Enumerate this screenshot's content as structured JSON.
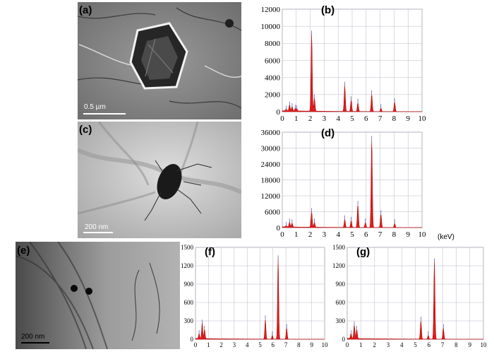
{
  "figure": {
    "panels": [
      {
        "id": "a",
        "label": "(a)",
        "scale": "0.5 µm"
      },
      {
        "id": "b",
        "label": "(b)"
      },
      {
        "id": "c",
        "label": "(c)",
        "scale": "200 nm"
      },
      {
        "id": "d",
        "label": "(d)"
      },
      {
        "id": "e",
        "label": "(e)",
        "scale": "200  nm"
      },
      {
        "id": "f",
        "label": "(f)"
      },
      {
        "id": "g",
        "label": "(g)"
      }
    ],
    "x_unit_label": "(keV)"
  },
  "chart_data": [
    {
      "panel": "b",
      "type": "area",
      "xlim": [
        0,
        10
      ],
      "ylim": [
        0,
        12000
      ],
      "xticks": [
        "0",
        "1",
        "2",
        "3",
        "4",
        "5",
        "6",
        "7",
        "8",
        "9",
        "10"
      ],
      "yticks": [
        "0",
        "2000",
        "4000",
        "6000",
        "8000",
        "10000",
        "12000"
      ],
      "peaks": [
        {
          "x": 0.28,
          "y": 200
        },
        {
          "x": 0.52,
          "y": 700
        },
        {
          "x": 0.7,
          "y": 500
        },
        {
          "x": 0.93,
          "y": 300
        },
        {
          "x": 1.04,
          "y": 250
        },
        {
          "x": 2.1,
          "y": 9000
        },
        {
          "x": 2.3,
          "y": 1500
        },
        {
          "x": 4.47,
          "y": 3000
        },
        {
          "x": 4.93,
          "y": 1300
        },
        {
          "x": 5.41,
          "y": 1000
        },
        {
          "x": 6.4,
          "y": 2000
        },
        {
          "x": 7.06,
          "y": 400
        },
        {
          "x": 8.04,
          "y": 1100
        }
      ],
      "background": 120,
      "fill": "#dd1c1c"
    },
    {
      "panel": "d",
      "type": "area",
      "xlim": [
        0,
        10
      ],
      "ylim": [
        0,
        36000
      ],
      "xticks": [
        "0",
        "1",
        "2",
        "3",
        "4",
        "5",
        "6",
        "7",
        "8",
        "9",
        "10"
      ],
      "yticks": [
        "0",
        "6000",
        "12000",
        "18000",
        "24000",
        "30000",
        "36000"
      ],
      "peaks": [
        {
          "x": 0.28,
          "y": 500
        },
        {
          "x": 0.52,
          "y": 1800
        },
        {
          "x": 0.7,
          "y": 1500
        },
        {
          "x": 2.1,
          "y": 5800
        },
        {
          "x": 2.3,
          "y": 1800
        },
        {
          "x": 4.47,
          "y": 3000
        },
        {
          "x": 4.93,
          "y": 2500
        },
        {
          "x": 5.41,
          "y": 8500
        },
        {
          "x": 5.95,
          "y": 1800
        },
        {
          "x": 6.4,
          "y": 33000
        },
        {
          "x": 7.06,
          "y": 5000
        },
        {
          "x": 8.04,
          "y": 1500
        }
      ],
      "background": 300,
      "fill": "#dd1c1c"
    },
    {
      "panel": "f",
      "type": "area",
      "xlim": [
        0,
        10
      ],
      "ylim": [
        0,
        1500
      ],
      "xticks": [
        "0",
        "1",
        "2",
        "3",
        "4",
        "5",
        "6",
        "7",
        "8",
        "9",
        "10"
      ],
      "yticks": [
        "0",
        "300",
        "600",
        "900",
        "1200",
        "1500"
      ],
      "peaks": [
        {
          "x": 0.28,
          "y": 80
        },
        {
          "x": 0.52,
          "y": 250
        },
        {
          "x": 0.7,
          "y": 150
        },
        {
          "x": 5.41,
          "y": 320
        },
        {
          "x": 5.95,
          "y": 60
        },
        {
          "x": 6.4,
          "y": 1300
        },
        {
          "x": 7.06,
          "y": 180
        }
      ],
      "background": 15,
      "fill": "#dd1c1c"
    },
    {
      "panel": "g",
      "type": "area",
      "xlim": [
        0,
        10
      ],
      "ylim": [
        0,
        1500
      ],
      "xticks": [
        "0",
        "1",
        "2",
        "3",
        "4",
        "5",
        "6",
        "7",
        "8",
        "9",
        "10"
      ],
      "yticks": [
        "0",
        "300",
        "600",
        "900",
        "1200",
        "1500"
      ],
      "peaks": [
        {
          "x": 0.28,
          "y": 80
        },
        {
          "x": 0.52,
          "y": 220
        },
        {
          "x": 0.7,
          "y": 150
        },
        {
          "x": 5.41,
          "y": 300
        },
        {
          "x": 5.95,
          "y": 60
        },
        {
          "x": 6.4,
          "y": 1250
        },
        {
          "x": 7.06,
          "y": 180
        }
      ],
      "background": 15,
      "fill": "#dd1c1c"
    }
  ]
}
